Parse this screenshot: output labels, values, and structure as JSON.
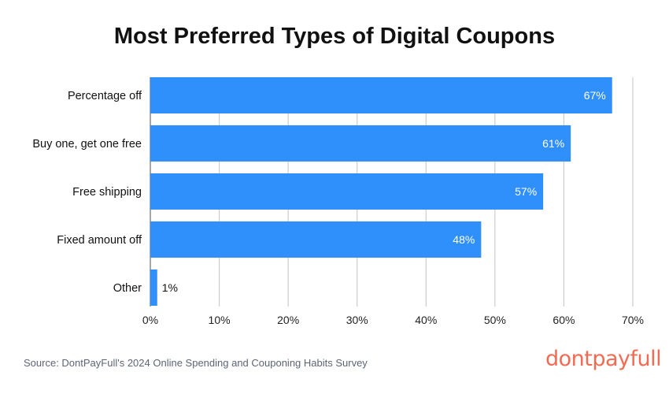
{
  "chart_data": {
    "type": "bar",
    "orientation": "horizontal",
    "title": "Most Preferred Types of Digital Coupons",
    "categories": [
      "Percentage off",
      "Buy one, get one free",
      "Free shipping",
      "Fixed amount off",
      "Other"
    ],
    "values": [
      67,
      61,
      57,
      48,
      1
    ],
    "data_labels": [
      "67%",
      "61%",
      "57%",
      "48%",
      "1%"
    ],
    "xlim": [
      0,
      70
    ],
    "x_ticks": [
      "0%",
      "10%",
      "20%",
      "30%",
      "40%",
      "50%",
      "60%",
      "70%"
    ],
    "grid": true,
    "bar_color": "#2f8ffb"
  },
  "source": "Source: DontPayFull's 2024 Online Spending and Couponing Habits Survey",
  "logo": "dontpayfull",
  "logo_color": "#f26a52"
}
